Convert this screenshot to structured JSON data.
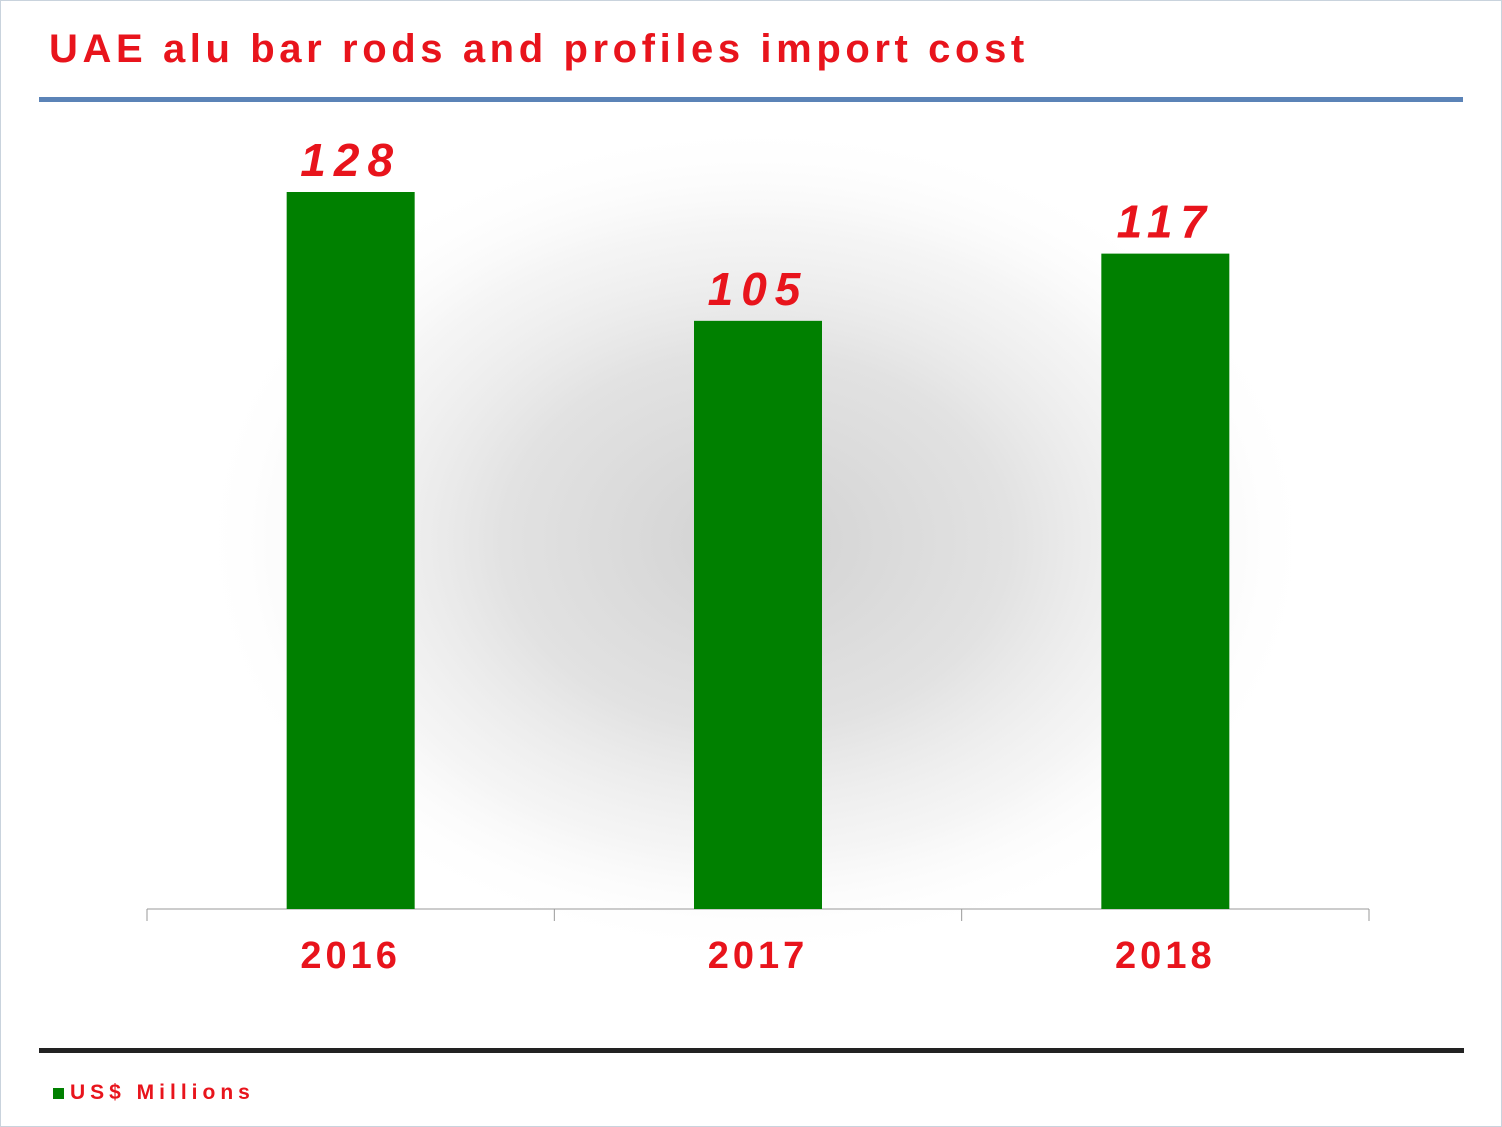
{
  "chart_data": {
    "type": "bar",
    "title": "UAE alu bar rods and profiles import cost",
    "categories": [
      "2016",
      "2017",
      "2018"
    ],
    "series": [
      {
        "name": "US$ Millions",
        "values": [
          128,
          105,
          117
        ]
      }
    ],
    "data_labels": [
      "128",
      "105",
      "117"
    ],
    "ylim": [
      0,
      128
    ],
    "grid": false,
    "legend_position": "bottom-left",
    "colors": {
      "bar": "#008000",
      "text": "#e8141c",
      "title_rule": "#5b83b7",
      "bottom_rule": "#222222",
      "axis": "#999999"
    }
  }
}
